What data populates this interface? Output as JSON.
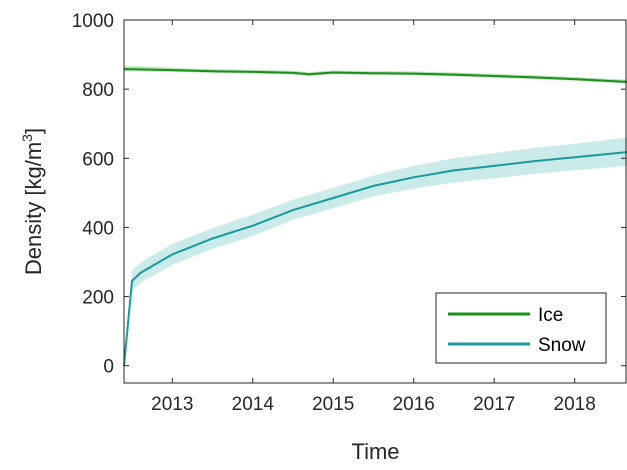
{
  "chart_data": {
    "type": "line",
    "title": "",
    "xlabel": "Time",
    "ylabel": "Density [kg/m³]",
    "ylabel_main": "Density [kg/m",
    "ylabel_sup": "3",
    "ylabel_end": "]",
    "xlim": [
      2012.4,
      2018.65
    ],
    "ylim": [
      -50,
      1000
    ],
    "xticks": [
      2013,
      2014,
      2015,
      2016,
      2017,
      2018
    ],
    "xtick_labels": [
      "2013",
      "2014",
      "2015",
      "2016",
      "2017",
      "2018"
    ],
    "yticks": [
      0,
      200,
      400,
      600,
      800,
      1000
    ],
    "ytick_labels": [
      "0",
      "200",
      "400",
      "600",
      "800",
      "1000"
    ],
    "grid": false,
    "legend_position": "bottom-right",
    "series": [
      {
        "name": "Ice",
        "color": "#1a8f1a",
        "band_color": "#a3dba3",
        "x": [
          2012.4,
          2012.6,
          2013.0,
          2013.5,
          2014.0,
          2014.5,
          2014.7,
          2015.0,
          2015.5,
          2016.0,
          2016.5,
          2017.0,
          2017.5,
          2018.0,
          2018.65
        ],
        "y": [
          858,
          857,
          855,
          852,
          850,
          847,
          843,
          848,
          846,
          845,
          842,
          838,
          834,
          829,
          821
        ],
        "lower": [
          852,
          852,
          850,
          847,
          845,
          842,
          838,
          843,
          841,
          840,
          837,
          833,
          829,
          824,
          816
        ],
        "upper": [
          866,
          866,
          862,
          858,
          856,
          853,
          849,
          854,
          852,
          851,
          848,
          844,
          840,
          835,
          827
        ]
      },
      {
        "name": "Snow",
        "color": "#1a9a9a",
        "band_color": "#b9e3e3",
        "x": [
          2012.4,
          2012.5,
          2012.6,
          2012.8,
          2013.0,
          2013.5,
          2014.0,
          2014.5,
          2015.0,
          2015.5,
          2016.0,
          2016.5,
          2017.0,
          2017.5,
          2018.0,
          2018.65
        ],
        "y": [
          0,
          245,
          268,
          295,
          322,
          368,
          405,
          450,
          485,
          520,
          545,
          565,
          578,
          592,
          603,
          618
        ],
        "lower": [
          0,
          215,
          240,
          265,
          292,
          338,
          375,
          422,
          455,
          490,
          512,
          530,
          542,
          555,
          565,
          578
        ],
        "upper": [
          0,
          275,
          298,
          325,
          352,
          398,
          437,
          480,
          515,
          550,
          578,
          600,
          615,
          630,
          642,
          660
        ]
      }
    ]
  }
}
